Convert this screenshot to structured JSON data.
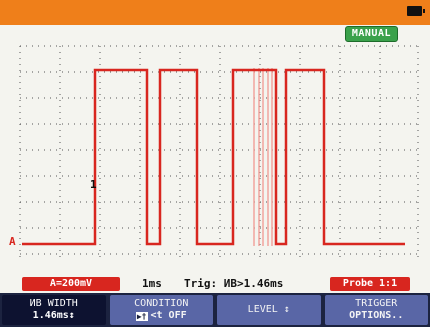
{
  "status": {
    "mode_badge": "MANUAL",
    "battery_icon": "battery-icon"
  },
  "waveform": {
    "channel_marker": "A",
    "trigger_marker": "1",
    "trace_color": "#d8261f"
  },
  "info": {
    "channel_scale": "A=200mV",
    "timebase": "1ms",
    "trigger": "Trig: ИB>1.46ms",
    "probe": "Probe 1:1"
  },
  "softkeys": [
    {
      "line1": "ИB WIDTH",
      "line2": "1.46ms↕"
    },
    {
      "line1": "CONDITION",
      "line2_icon": "▶†",
      "line2": "<t  OFF"
    },
    {
      "line1": "LEVEL ↕",
      "line2": ""
    },
    {
      "line1": "TRIGGER",
      "line2": "OPTIONS.."
    }
  ],
  "colors": {
    "top_bar": "#ef7f1a",
    "accent_red": "#d8261f",
    "softkey": "#5966a6",
    "softkey_bar": "#1c2340",
    "badge": "#3aa14b"
  }
}
